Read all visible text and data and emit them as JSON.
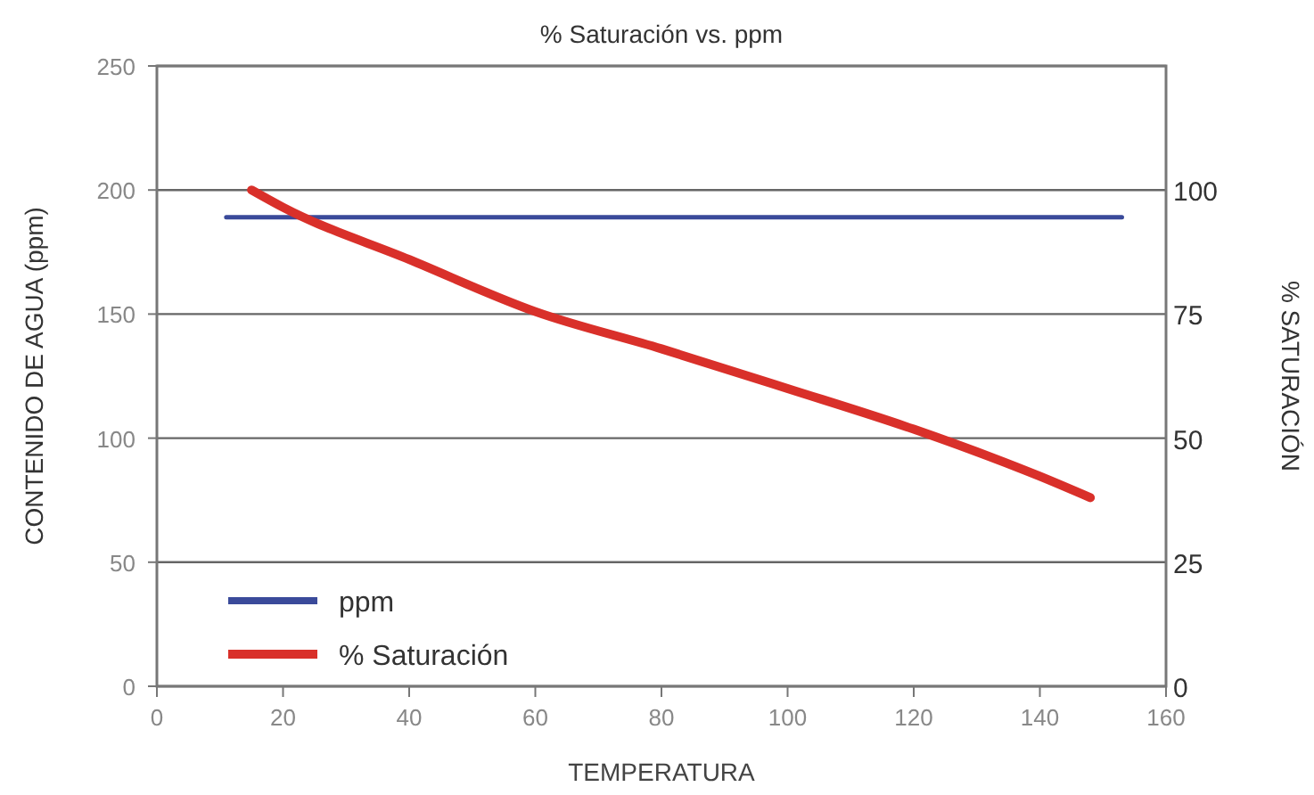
{
  "chart_data": {
    "type": "line",
    "title": "% Saturación vs. ppm",
    "xlabel": "TEMPERATURA",
    "ylabel": "CONTENIDO DE AGUA (ppm)",
    "y2label": "% SATURACIÓN",
    "xlim": [
      0,
      160
    ],
    "xticks": [
      0,
      20,
      40,
      60,
      80,
      100,
      120,
      140,
      160
    ],
    "ylim": [
      0,
      250
    ],
    "yticks": [
      0,
      50,
      100,
      150,
      200,
      250
    ],
    "y2lim": [
      0,
      125
    ],
    "y2ticks": [
      0,
      25,
      50,
      75,
      100
    ],
    "grid": "y",
    "legend": "bottom left",
    "marker": "none",
    "line_style": "solid",
    "series": [
      {
        "name": "ppm",
        "color": "#3a4a9a",
        "x": [
          11,
          153
        ],
        "values": [
          189,
          189
        ]
      },
      {
        "name": "% Saturación",
        "color": "#d9302a",
        "axis": "y2",
        "x": [
          15,
          20,
          40,
          60,
          80,
          100,
          120,
          140,
          148
        ],
        "values": [
          100,
          96.5,
          86,
          75.5,
          68,
          60,
          51.8,
          42.3,
          38
        ]
      }
    ]
  }
}
